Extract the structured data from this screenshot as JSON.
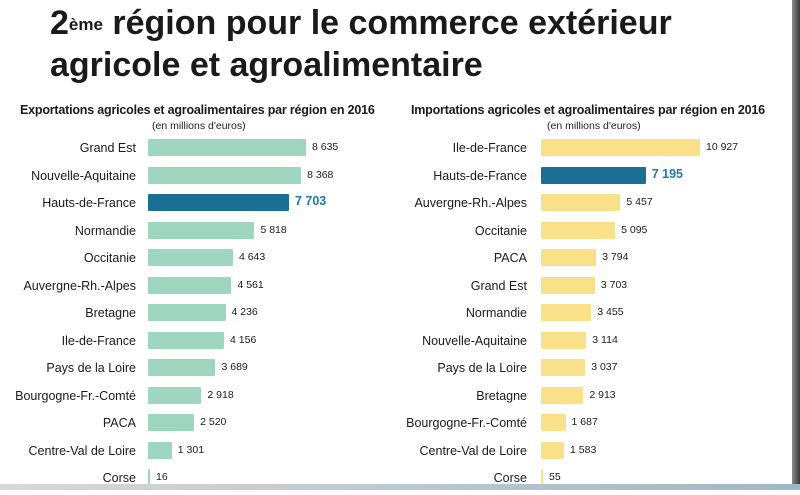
{
  "title": {
    "prefix": "2",
    "sup": "ème",
    "rest": " région pour le commerce extérieur",
    "line2": "agricole et agroalimentaire"
  },
  "colors": {
    "export_bar": "#9ed6c0",
    "import_bar": "#fbe08a",
    "highlight": "#1a6f94",
    "highlight_text": "#1f78a8"
  },
  "chart_data": [
    {
      "type": "bar",
      "orientation": "horizontal",
      "title": "Exportations agricoles et agroalimentaires par région en 2016",
      "subtitle": "(en millions d'euros)",
      "highlight": "Hauts-de-France",
      "categories": [
        "Grand Est",
        "Nouvelle-Aquitaine",
        "Hauts-de-France",
        "Normandie",
        "Occitanie",
        "Auvergne-Rh.-Alpes",
        "Bretagne",
        "Ile-de-France",
        "Pays de la Loire",
        "Bourgogne-Fr.-Comté",
        "PACA",
        "Centre-Val de Loire",
        "Corse"
      ],
      "values": [
        8635,
        8368,
        7703,
        5818,
        4643,
        4561,
        4236,
        4156,
        3689,
        2918,
        2520,
        1301,
        16
      ],
      "value_labels": [
        "8 635",
        "8 368",
        "7 703",
        "5 818",
        "4 643",
        "4 561",
        "4 236",
        "4 156",
        "3 689",
        "2 918",
        "2 520",
        "1 301",
        "16"
      ]
    },
    {
      "type": "bar",
      "orientation": "horizontal",
      "title": "Importations agricoles et agroalimentaires par région en 2016",
      "subtitle": "(en millions d'euros)",
      "highlight": "Hauts-de-France",
      "categories": [
        "Ile-de-France",
        "Hauts-de-France",
        "Auvergne-Rh.-Alpes",
        "Occitanie",
        "PACA",
        "Grand Est",
        "Normandie",
        "Nouvelle-Aquitaine",
        "Pays de la Loire",
        "Bretagne",
        "Bourgogne-Fr.-Comté",
        "Centre-Val de Loire",
        "Corse"
      ],
      "values": [
        10927,
        7195,
        5457,
        5095,
        3794,
        3703,
        3455,
        3114,
        3037,
        2913,
        1687,
        1583,
        55
      ],
      "value_labels": [
        "10 927",
        "7 195",
        "5 457",
        "5 095",
        "3 794",
        "3 703",
        "3 455",
        "3 114",
        "3 037",
        "2 913",
        "1 687",
        "1 583",
        "55"
      ]
    }
  ]
}
